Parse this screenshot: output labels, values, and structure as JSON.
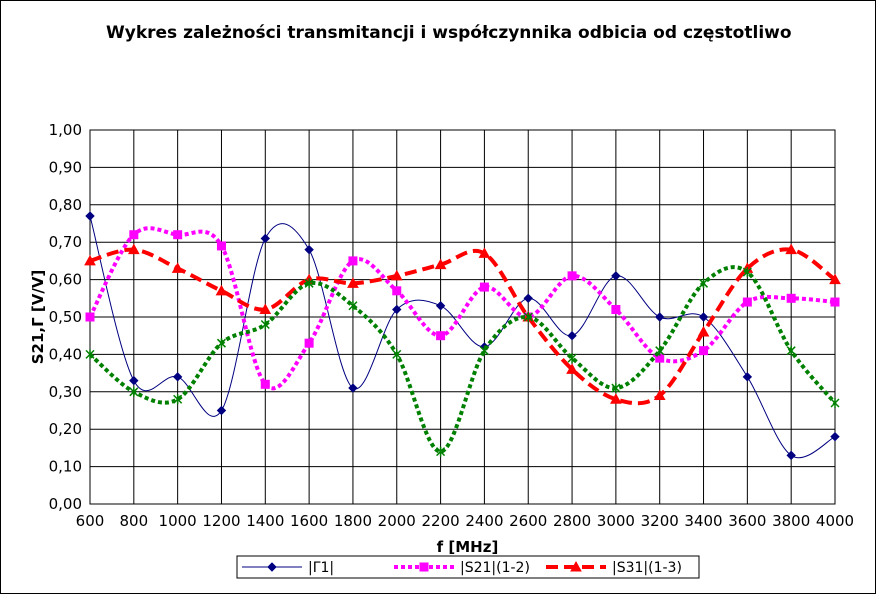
{
  "chart_data": {
    "type": "line",
    "title": "Wykres zależności transmitancji i współczynnika odbicia od częstotliwo",
    "xlabel": "f [MHz]",
    "ylabel": "S21,Γ [V/V]",
    "xlim": [
      600,
      4000
    ],
    "ylim": [
      0,
      1
    ],
    "x_ticks": [
      "600",
      "800",
      "1000",
      "1200",
      "1400",
      "1600",
      "1800",
      "2000",
      "2200",
      "2400",
      "2600",
      "2800",
      "3000",
      "3200",
      "3400",
      "3600",
      "3800",
      "4000"
    ],
    "y_ticks": [
      "0,00",
      "0,10",
      "0,20",
      "0,30",
      "0,40",
      "0,50",
      "0,60",
      "0,70",
      "0,80",
      "0,90",
      "1,00"
    ],
    "grid": true,
    "legend_position": "bottom",
    "x": [
      600,
      800,
      1000,
      1200,
      1400,
      1600,
      1800,
      2000,
      2200,
      2400,
      2600,
      2800,
      3000,
      3200,
      3400,
      3600,
      3800,
      4000
    ],
    "series": [
      {
        "name": "|Γ1|",
        "color": "#000080",
        "dash": "",
        "stroke_weight": "thin",
        "marker": "diamond",
        "values": [
          0.77,
          0.33,
          0.34,
          0.25,
          0.71,
          0.68,
          0.31,
          0.52,
          0.53,
          0.42,
          0.55,
          0.45,
          0.61,
          0.5,
          0.5,
          0.34,
          0.13,
          0.18
        ]
      },
      {
        "name": "|S21|(1-2)",
        "color": "#FF00FF",
        "dash": "dotted",
        "stroke_weight": "thick",
        "marker": "square",
        "values": [
          0.5,
          0.72,
          0.72,
          0.69,
          0.32,
          0.43,
          0.65,
          0.57,
          0.45,
          0.58,
          0.5,
          0.61,
          0.52,
          0.39,
          0.41,
          0.54,
          0.55,
          0.54
        ]
      },
      {
        "name": "|S31|(1-3)",
        "color": "#FF0000",
        "dash": "dashed",
        "stroke_weight": "thick",
        "marker": "triangle",
        "values": [
          0.65,
          0.68,
          0.63,
          0.57,
          0.52,
          0.6,
          0.59,
          0.61,
          0.64,
          0.67,
          0.5,
          0.36,
          0.28,
          0.29,
          0.46,
          0.63,
          0.68,
          0.6
        ]
      },
      {
        "name": "",
        "color": "#008000",
        "dash": "dotted",
        "stroke_weight": "thick",
        "marker": "star",
        "values": [
          0.4,
          0.3,
          0.28,
          0.43,
          0.48,
          0.59,
          0.53,
          0.4,
          0.14,
          0.41,
          0.5,
          0.39,
          0.31,
          0.41,
          0.59,
          0.62,
          0.41,
          0.27
        ]
      }
    ]
  }
}
